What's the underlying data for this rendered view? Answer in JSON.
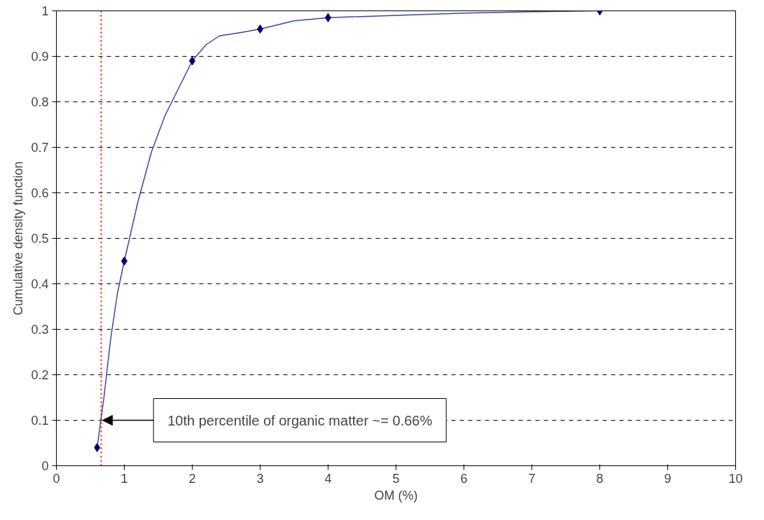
{
  "chart_data": {
    "type": "line",
    "xlabel": "OM (%)",
    "ylabel": "Cumulative density function",
    "xlim": [
      0,
      10
    ],
    "ylim": [
      0,
      1
    ],
    "xticks": [
      0,
      1,
      2,
      3,
      4,
      5,
      6,
      7,
      8,
      9,
      10
    ],
    "yticks": [
      0,
      0.1,
      0.2,
      0.3,
      0.4,
      0.5,
      0.6,
      0.7,
      0.8,
      0.9,
      1
    ],
    "grid": "y",
    "line_style": "solid",
    "series": [
      {
        "color": "#3b44a8",
        "x": [
          0.6,
          0.7,
          0.8,
          0.9,
          1,
          1.2,
          1.4,
          1.6,
          1.8,
          2,
          2.2,
          2.4,
          2.7,
          3,
          3.5,
          4,
          5,
          6,
          7,
          8
        ],
        "values": [
          0.04,
          0.15,
          0.28,
          0.38,
          0.45,
          0.58,
          0.69,
          0.77,
          0.83,
          0.89,
          0.925,
          0.945,
          0.952,
          0.96,
          0.978,
          0.985,
          0.99,
          0.995,
          0.998,
          1.0
        ]
      },
      {
        "type": "scatter",
        "marker": "diamond",
        "color": "#00006e",
        "x": [
          0.6,
          1,
          2,
          3,
          4,
          8
        ],
        "values": [
          0.04,
          0.45,
          0.89,
          0.96,
          0.985,
          1.0
        ]
      }
    ],
    "ref_lines": [
      {
        "axis": "x",
        "value": 0.66,
        "color": "#ff0000",
        "line_style": "dotted"
      }
    ],
    "annotations": [
      {
        "text": "10th percentile of organic matter ~= 0.66%",
        "x": 0.68,
        "y": 0.1
      }
    ]
  }
}
